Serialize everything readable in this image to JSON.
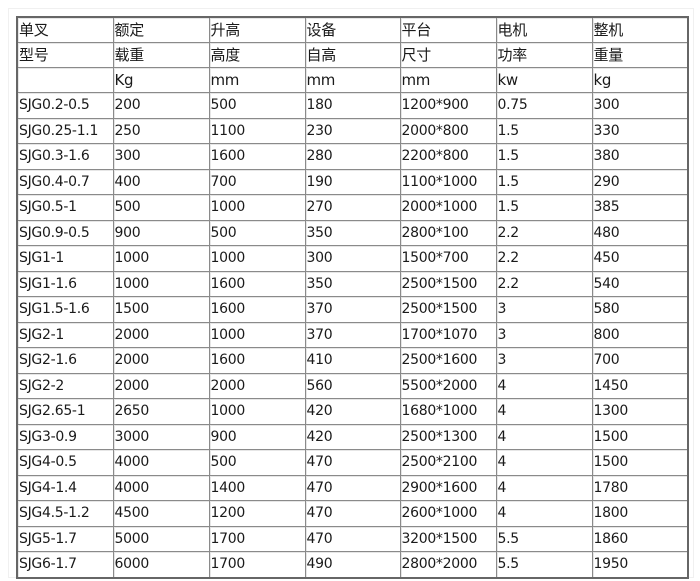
{
  "header_row1": [
    "单叉",
    "额定",
    "升高",
    "设备",
    "平台",
    "电机",
    "整机"
  ],
  "header_row2": [
    "型号",
    "载重",
    "高度",
    "自高",
    "尺寸",
    "功率",
    "重量"
  ],
  "units": [
    "",
    "Kg",
    "mm",
    "mm",
    "mm",
    "kw",
    "kg"
  ],
  "rows": [
    [
      "SJG0.2-0.5",
      "200",
      "500",
      "180",
      "1200*900",
      "0.75",
      "300"
    ],
    [
      "SJG0.25-1.1",
      "250",
      "1100",
      "230",
      "2000*800",
      "1.5",
      "330"
    ],
    [
      "SJG0.3-1.6",
      "300",
      "1600",
      "280",
      "2200*800",
      "1.5",
      "380"
    ],
    [
      "SJG0.4-0.7",
      "400",
      "700",
      "190",
      "1100*1000",
      "1.5",
      "290"
    ],
    [
      "SJG0.5-1",
      "500",
      "1000",
      "270",
      "2000*1000",
      "1.5",
      "385"
    ],
    [
      "SJG0.9-0.5",
      "900",
      "500",
      "350",
      "2800*100",
      "2.2",
      "480"
    ],
    [
      "SJG1-1",
      "1000",
      "1000",
      "300",
      "1500*700",
      "2.2",
      "450"
    ],
    [
      "SJG1-1.6",
      "1000",
      "1600",
      "350",
      "2500*1500",
      "2.2",
      "540"
    ],
    [
      "SJG1.5-1.6",
      "1500",
      "1600",
      "370",
      "2500*1500",
      "3",
      "580"
    ],
    [
      "SJG2-1",
      "2000",
      "1000",
      "370",
      "1700*1070",
      "3",
      "800"
    ],
    [
      "SJG2-1.6",
      "2000",
      "1600",
      "410",
      "2500*1600",
      "3",
      "700"
    ],
    [
      "SJG2-2",
      "2000",
      "2000",
      "560",
      "5500*2000",
      "4",
      "1450"
    ],
    [
      "SJG2.65-1",
      "2650",
      "1000",
      "420",
      "1680*1000",
      "4",
      "1300"
    ],
    [
      "SJG3-0.9",
      "3000",
      "900",
      "420",
      "2500*1300",
      "4",
      "1500"
    ],
    [
      "SJG4-0.5",
      "4000",
      "500",
      "470",
      "2500*2100",
      "4",
      "1500"
    ],
    [
      "SJG4-1.4",
      "4000",
      "1400",
      "470",
      "2900*1600",
      "4",
      "1780"
    ],
    [
      "SJG4.5-1.2",
      "4500",
      "1200",
      "470",
      "2600*1000",
      "4",
      "1800"
    ],
    [
      "SJG5-1.7",
      "5000",
      "1700",
      "470",
      "3200*1500",
      "5.5",
      "1860"
    ],
    [
      "SJG6-1.7",
      "6000",
      "1700",
      "490",
      "2800*2000",
      "5.5",
      "1950"
    ]
  ]
}
